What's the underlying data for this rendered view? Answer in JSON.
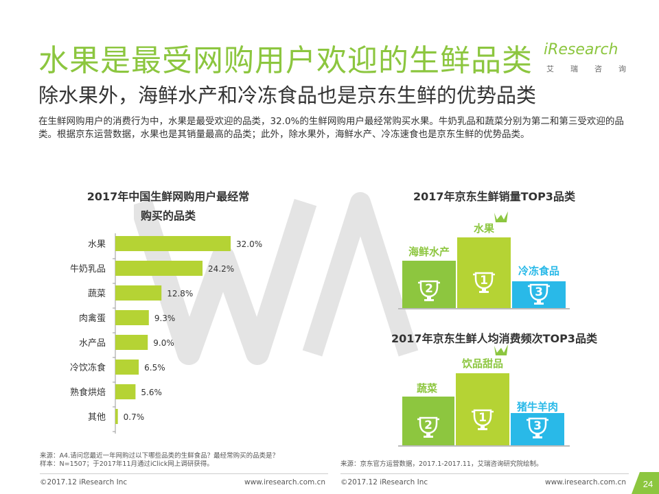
{
  "header": {
    "title": "水果是最受网购用户欢迎的生鲜品类",
    "subtitle": "除水果外，海鲜水产和冷冻食品也是京东生鲜的优势品类",
    "intro": "在生鲜网购用户的消费行为中，水果是最受欢迎的品类，32.0%的生鲜网购用户最经常购买水果。牛奶乳品和蔬菜分别为第二和第三受欢迎的品类。根据京东运营数据，水果也是其销量最高的品类；此外，除水果外，海鲜水产、冷冻速食也是京东生鲜的优势品类。"
  },
  "logo": {
    "word": "iResearch",
    "sub": [
      "艾",
      "瑞",
      "咨",
      "询"
    ]
  },
  "left_chart": {
    "title_line1": "2017年中国生鲜网购用户最经常",
    "title_line2": "购买的品类"
  },
  "top3_sales": {
    "title": "2017年京东生鲜销量TOP3品类",
    "first": {
      "label": "水果",
      "rank": "1"
    },
    "second": {
      "label": "海鲜水产",
      "rank": "2"
    },
    "third": {
      "label": "冷冻食品",
      "rank": "3"
    }
  },
  "top3_freq": {
    "title": "2017年京东生鲜人均消费频次TOP3品类",
    "first": {
      "label": "饮品甜品",
      "rank": "1"
    },
    "second": {
      "label": "蔬菜",
      "rank": "2"
    },
    "third": {
      "label": "猪牛羊肉",
      "rank": "3"
    }
  },
  "sources": {
    "left_line1": "来源：A4.请问您最近一年网购过以下哪些品类的生鲜食品？最经常购买的品类是？",
    "left_line2": "样本：N=1507；于2017年11月通过iClick网上调研获得。",
    "right": "来源：京东官方运营数据，2017.1-2017.11，艾瑞咨询研究院绘制。"
  },
  "footer": {
    "copyright_left": "©2017.12 iResearch Inc",
    "url_left": "www.iresearch.com.cn",
    "copyright_right": "©2017.12 iResearch Inc",
    "url_right": "www.iresearch.com.cn",
    "page": "24"
  },
  "colors": {
    "accent": "#8cc63f",
    "lime": "#b5d334",
    "green_mid": "#8dc63f",
    "cyan": "#29b9e8",
    "text": "#333333"
  },
  "chart_data": {
    "type": "bar",
    "orientation": "horizontal",
    "title": "2017年中国生鲜网购用户最经常购买的品类",
    "categories": [
      "水果",
      "牛奶乳品",
      "蔬菜",
      "肉禽蛋",
      "水产品",
      "冷饮冻食",
      "熟食烘焙",
      "其他"
    ],
    "values": [
      32.0,
      24.2,
      12.8,
      9.3,
      9.0,
      6.5,
      5.6,
      0.7
    ],
    "value_labels": [
      "32.0%",
      "24.2%",
      "12.8%",
      "9.3%",
      "9.0%",
      "6.5%",
      "5.6%",
      "0.7%"
    ],
    "unit": "%",
    "xlim": [
      0,
      35
    ]
  }
}
